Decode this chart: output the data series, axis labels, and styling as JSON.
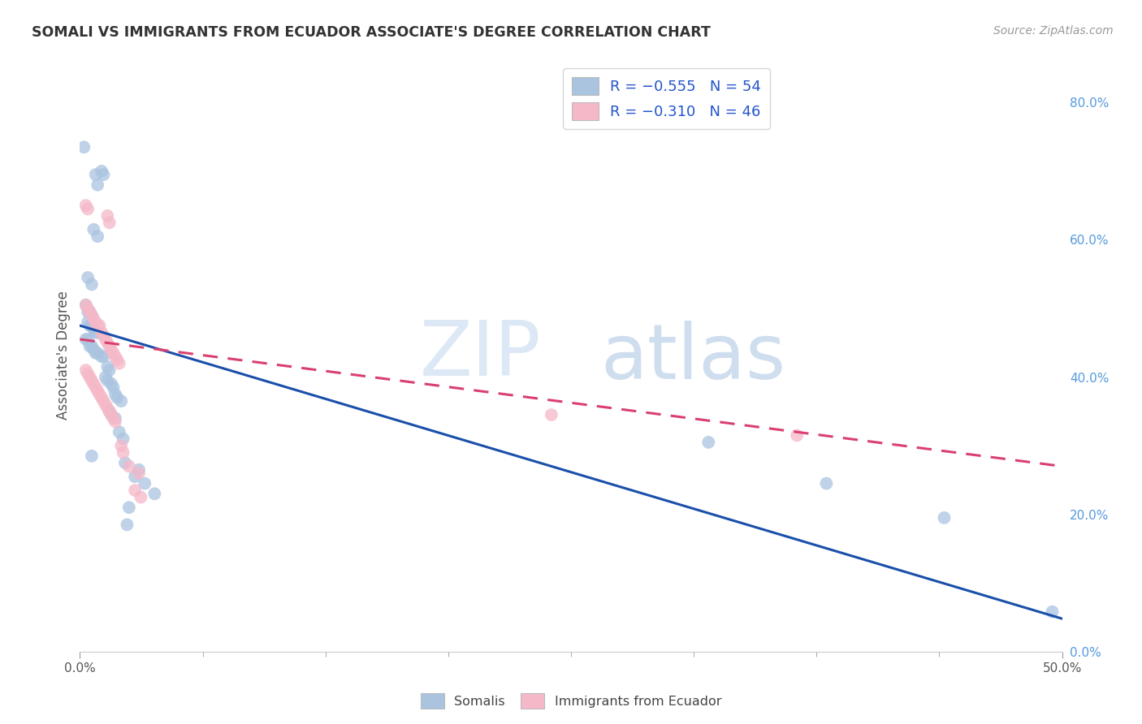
{
  "title": "SOMALI VS IMMIGRANTS FROM ECUADOR ASSOCIATE'S DEGREE CORRELATION CHART",
  "source": "Source: ZipAtlas.com",
  "ylabel": "Associate's Degree",
  "x_tick_positions": [
    0.0,
    0.25
  ],
  "x_tick_labels_ends": [
    "0.0%",
    "50.0%"
  ],
  "y_ticks_right": [
    0.0,
    0.2,
    0.4,
    0.6,
    0.8
  ],
  "y_tick_labels_right": [
    "0.0%",
    "20.0%",
    "40.0%",
    "60.0%",
    "80.0%"
  ],
  "xlim": [
    0.0,
    0.5
  ],
  "ylim": [
    0.0,
    0.865
  ],
  "legend1_label": "R = −0.555   N = 54",
  "legend2_label": "R = −0.310   N = 46",
  "legend_label1_short": "Somalis",
  "legend_label2_short": "Immigrants from Ecuador",
  "blue_color": "#aac4e0",
  "pink_color": "#f5b8c8",
  "blue_line_color": "#1a4faa",
  "pink_line_color": "#d94070",
  "watermark_zip": "ZIP",
  "watermark_atlas": "atlas",
  "background_color": "#ffffff",
  "grid_color": "#cccccc",
  "blue_scatter": [
    [
      0.002,
      0.735
    ],
    [
      0.008,
      0.695
    ],
    [
      0.009,
      0.68
    ],
    [
      0.011,
      0.7
    ],
    [
      0.012,
      0.695
    ],
    [
      0.007,
      0.615
    ],
    [
      0.009,
      0.605
    ],
    [
      0.004,
      0.545
    ],
    [
      0.006,
      0.535
    ],
    [
      0.003,
      0.505
    ],
    [
      0.004,
      0.495
    ],
    [
      0.005,
      0.495
    ],
    [
      0.006,
      0.49
    ],
    [
      0.004,
      0.48
    ],
    [
      0.005,
      0.475
    ],
    [
      0.006,
      0.475
    ],
    [
      0.007,
      0.47
    ],
    [
      0.008,
      0.465
    ],
    [
      0.009,
      0.465
    ],
    [
      0.003,
      0.455
    ],
    [
      0.004,
      0.455
    ],
    [
      0.005,
      0.445
    ],
    [
      0.006,
      0.445
    ],
    [
      0.007,
      0.44
    ],
    [
      0.008,
      0.435
    ],
    [
      0.009,
      0.435
    ],
    [
      0.011,
      0.43
    ],
    [
      0.012,
      0.43
    ],
    [
      0.014,
      0.415
    ],
    [
      0.015,
      0.41
    ],
    [
      0.013,
      0.4
    ],
    [
      0.014,
      0.395
    ],
    [
      0.016,
      0.39
    ],
    [
      0.017,
      0.385
    ],
    [
      0.018,
      0.375
    ],
    [
      0.019,
      0.37
    ],
    [
      0.021,
      0.365
    ],
    [
      0.015,
      0.35
    ],
    [
      0.016,
      0.345
    ],
    [
      0.018,
      0.34
    ],
    [
      0.02,
      0.32
    ],
    [
      0.022,
      0.31
    ],
    [
      0.006,
      0.285
    ],
    [
      0.023,
      0.275
    ],
    [
      0.03,
      0.265
    ],
    [
      0.028,
      0.255
    ],
    [
      0.033,
      0.245
    ],
    [
      0.038,
      0.23
    ],
    [
      0.025,
      0.21
    ],
    [
      0.024,
      0.185
    ],
    [
      0.32,
      0.305
    ],
    [
      0.38,
      0.245
    ],
    [
      0.44,
      0.195
    ],
    [
      0.495,
      0.058
    ]
  ],
  "pink_scatter": [
    [
      0.003,
      0.65
    ],
    [
      0.004,
      0.645
    ],
    [
      0.014,
      0.635
    ],
    [
      0.015,
      0.625
    ],
    [
      0.003,
      0.505
    ],
    [
      0.004,
      0.5
    ],
    [
      0.005,
      0.495
    ],
    [
      0.006,
      0.49
    ],
    [
      0.007,
      0.485
    ],
    [
      0.008,
      0.48
    ],
    [
      0.009,
      0.475
    ],
    [
      0.01,
      0.475
    ],
    [
      0.011,
      0.465
    ],
    [
      0.012,
      0.46
    ],
    [
      0.013,
      0.455
    ],
    [
      0.014,
      0.45
    ],
    [
      0.015,
      0.445
    ],
    [
      0.016,
      0.44
    ],
    [
      0.017,
      0.435
    ],
    [
      0.018,
      0.43
    ],
    [
      0.019,
      0.425
    ],
    [
      0.02,
      0.42
    ],
    [
      0.003,
      0.41
    ],
    [
      0.004,
      0.405
    ],
    [
      0.005,
      0.4
    ],
    [
      0.006,
      0.395
    ],
    [
      0.007,
      0.39
    ],
    [
      0.008,
      0.385
    ],
    [
      0.009,
      0.38
    ],
    [
      0.01,
      0.375
    ],
    [
      0.011,
      0.37
    ],
    [
      0.012,
      0.365
    ],
    [
      0.013,
      0.36
    ],
    [
      0.014,
      0.355
    ],
    [
      0.015,
      0.35
    ],
    [
      0.016,
      0.345
    ],
    [
      0.017,
      0.34
    ],
    [
      0.018,
      0.335
    ],
    [
      0.021,
      0.3
    ],
    [
      0.022,
      0.29
    ],
    [
      0.025,
      0.27
    ],
    [
      0.03,
      0.26
    ],
    [
      0.028,
      0.235
    ],
    [
      0.031,
      0.225
    ],
    [
      0.24,
      0.345
    ],
    [
      0.365,
      0.315
    ]
  ],
  "blue_line_x": [
    0.0,
    0.5
  ],
  "blue_line_y": [
    0.475,
    0.048
  ],
  "pink_line_x": [
    0.0,
    0.5
  ],
  "pink_line_y": [
    0.455,
    0.27
  ]
}
